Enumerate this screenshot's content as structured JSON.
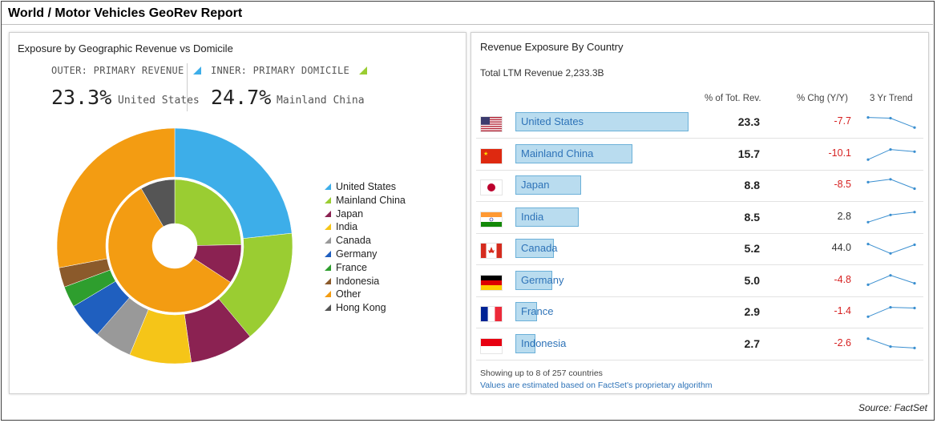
{
  "report_title": "World / Motor Vehicles GeoRev Report",
  "source": "Source: FactSet",
  "left": {
    "title": "Exposure by Geographic Revenue vs Domicile",
    "outer": {
      "caption": "OUTER: PRIMARY REVENUE",
      "value": "23.3%",
      "country": "United States"
    },
    "inner": {
      "caption": "INNER: PRIMARY DOMICILE",
      "value": "24.7%",
      "country": "Mainland China"
    },
    "legend": [
      {
        "label": "United States",
        "color": "#3daee9"
      },
      {
        "label": "Mainland China",
        "color": "#9acd32"
      },
      {
        "label": "Japan",
        "color": "#8b2252"
      },
      {
        "label": "India",
        "color": "#f5c518"
      },
      {
        "label": "Canada",
        "color": "#999999"
      },
      {
        "label": "Germany",
        "color": "#1f5fbf"
      },
      {
        "label": "France",
        "color": "#2e9e2e"
      },
      {
        "label": "Indonesia",
        "color": "#8b5a2b"
      },
      {
        "label": "Other",
        "color": "#f39c12"
      },
      {
        "label": "Hong Kong",
        "color": "#555555"
      }
    ]
  },
  "chart_data": {
    "type": "pie",
    "title": "Exposure by Geographic Revenue vs Domicile",
    "series": [
      {
        "name": "OUTER: PRIMARY REVENUE",
        "labels": [
          "United States",
          "Mainland China",
          "Japan",
          "India",
          "Canada",
          "Germany",
          "France",
          "Indonesia",
          "Other"
        ],
        "values": [
          23.3,
          15.7,
          8.8,
          8.5,
          5.2,
          5.0,
          2.9,
          2.7,
          28.0
        ]
      },
      {
        "name": "INNER: PRIMARY DOMICILE",
        "labels": [
          "Mainland China",
          "Japan",
          "Other",
          "Hong Kong"
        ],
        "values": [
          24.7,
          9.5,
          57.4,
          8.4
        ]
      }
    ]
  },
  "right": {
    "title": "Revenue Exposure By Country",
    "total": "Total LTM Revenue 2,233.3B",
    "headers": {
      "pct": "% of Tot. Rev.",
      "chg": "% Chg (Y/Y)",
      "trend": "3 Yr Trend"
    },
    "rows": [
      {
        "country": "United States",
        "flag": "us",
        "pct_value": 23.3,
        "pct": "23.3",
        "chg": "-7.7",
        "trend": [
          0.8,
          0.75,
          0.1
        ]
      },
      {
        "country": "Mainland China",
        "flag": "cn",
        "pct_value": 15.7,
        "pct": "15.7",
        "chg": "-10.1",
        "trend": [
          0.1,
          0.8,
          0.65
        ]
      },
      {
        "country": "Japan",
        "flag": "jp",
        "pct_value": 8.8,
        "pct": "8.8",
        "chg": "-8.5",
        "trend": [
          0.7,
          0.9,
          0.25
        ]
      },
      {
        "country": "India",
        "flag": "in",
        "pct_value": 8.5,
        "pct": "8.5",
        "chg": "2.8",
        "trend": [
          0.15,
          0.65,
          0.85
        ]
      },
      {
        "country": "Canada",
        "flag": "ca",
        "pct_value": 5.2,
        "pct": "5.2",
        "chg": "44.0",
        "trend": [
          0.8,
          0.15,
          0.75
        ]
      },
      {
        "country": "Germany",
        "flag": "de",
        "pct_value": 5.0,
        "pct": "5.0",
        "chg": "-4.8",
        "trend": [
          0.2,
          0.85,
          0.3
        ]
      },
      {
        "country": "France",
        "flag": "fr",
        "pct_value": 2.9,
        "pct": "2.9",
        "chg": "-1.4",
        "trend": [
          0.15,
          0.8,
          0.75
        ]
      },
      {
        "country": "Indonesia",
        "flag": "id",
        "pct_value": 2.7,
        "pct": "2.7",
        "chg": "-2.6",
        "trend": [
          0.85,
          0.3,
          0.2
        ]
      }
    ],
    "foot_note": "Showing up to 8 of 257 countries",
    "foot_link": "Values are estimated based on FactSet's proprietary algorithm"
  }
}
